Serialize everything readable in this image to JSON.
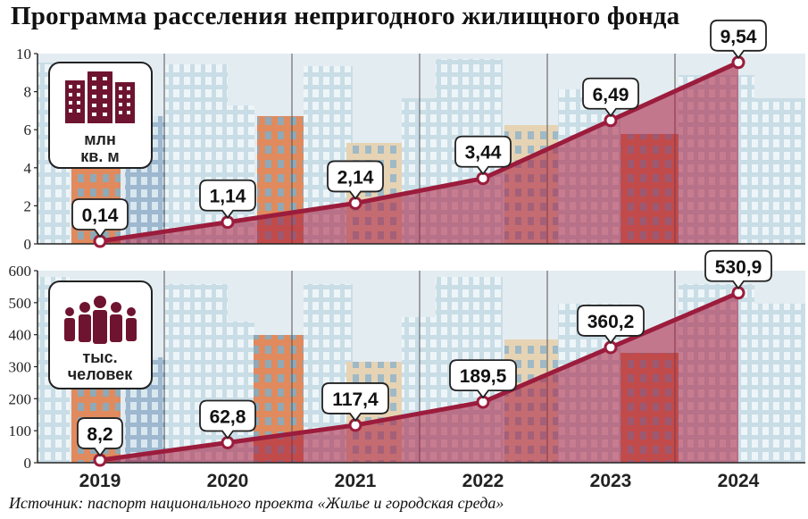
{
  "title": "Программа расселения непригодного жилищного фонда",
  "source": "Источник: паспорт национального проекта «Жилье и городская среда»",
  "colors": {
    "line": "#9b1c3c",
    "area": "#a8183a",
    "building_dark": "#6e1430",
    "sky": "#dde8ee"
  },
  "chart_data": [
    {
      "type": "area",
      "unit_icon": "buildings-icon",
      "unit_label_1": "млн",
      "unit_label_2": "кв. м",
      "x": [
        "2019",
        "2020",
        "2021",
        "2022",
        "2023",
        "2024"
      ],
      "values": [
        0.14,
        1.14,
        2.14,
        3.44,
        6.49,
        9.54
      ],
      "value_labels": [
        "0,14",
        "1,14",
        "2,14",
        "3,44",
        "6,49",
        "9,54"
      ],
      "ylim": [
        0,
        10
      ],
      "yticks": [
        0,
        2,
        4,
        6,
        8,
        10
      ],
      "grid": "vertical"
    },
    {
      "type": "area",
      "unit_icon": "people-icon",
      "unit_label_1": "тыс.",
      "unit_label_2": "человек",
      "x": [
        "2019",
        "2020",
        "2021",
        "2022",
        "2023",
        "2024"
      ],
      "values": [
        8.2,
        62.8,
        117.4,
        189.5,
        360.2,
        530.9
      ],
      "value_labels": [
        "8,2",
        "62,8",
        "117,4",
        "189,5",
        "360,2",
        "530,9"
      ],
      "ylim": [
        0,
        600
      ],
      "yticks": [
        0,
        100,
        200,
        300,
        400,
        500,
        600
      ],
      "grid": "vertical"
    }
  ]
}
